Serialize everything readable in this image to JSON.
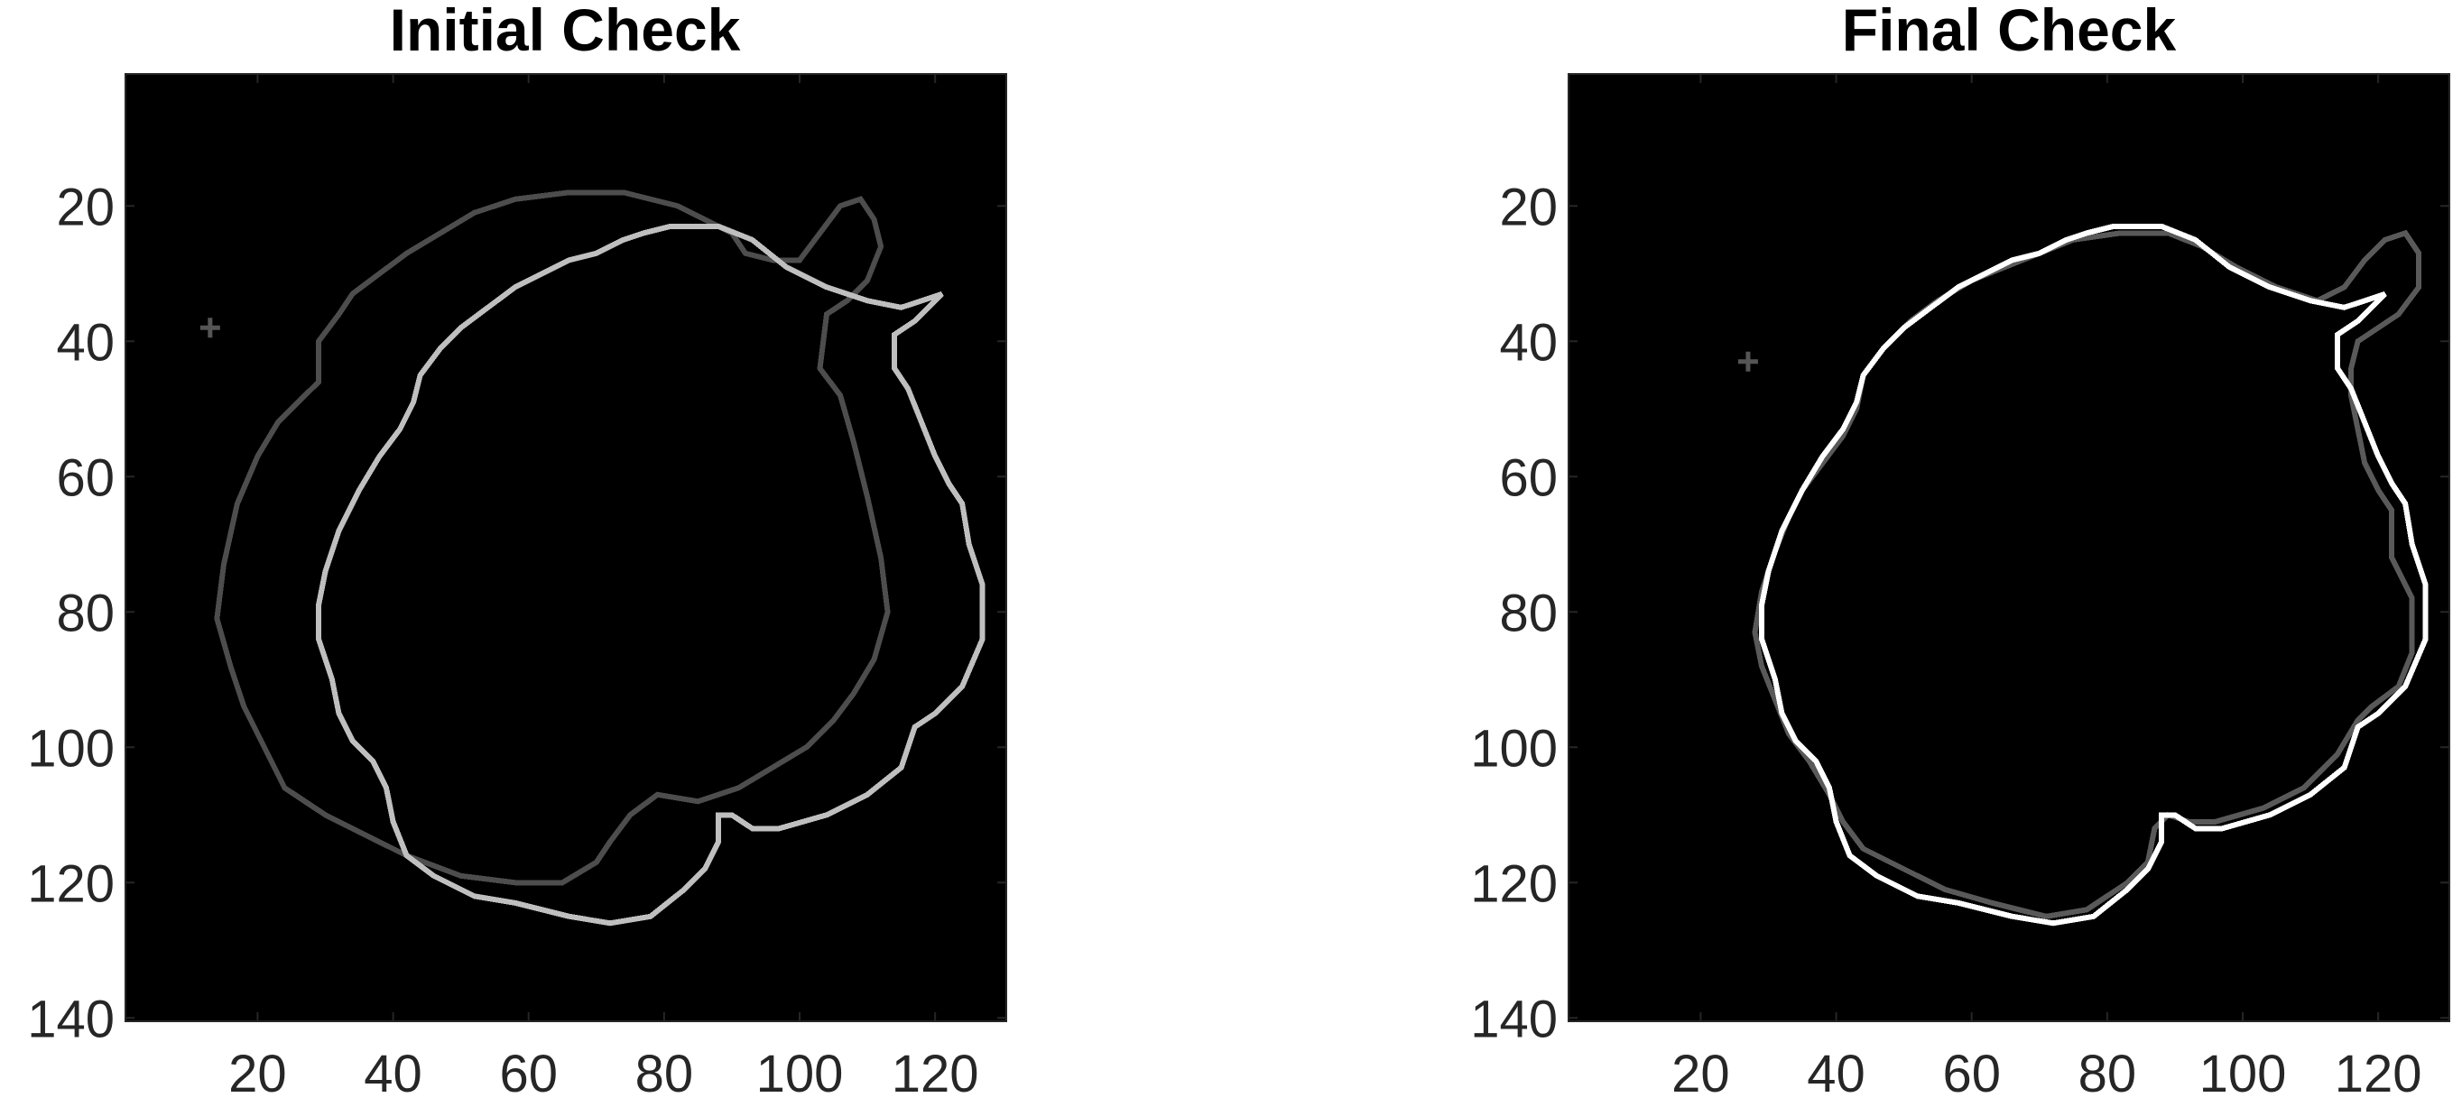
{
  "chart_data": [
    {
      "type": "heatmap",
      "title": "Initial Check",
      "xlabel": "",
      "ylabel": "",
      "xlim": [
        0.5,
        130.5
      ],
      "ylim": [
        0.5,
        140.5
      ],
      "y_direction": "reverse",
      "xticks": [
        20,
        40,
        60,
        80,
        100,
        120
      ],
      "yticks": [
        20,
        40,
        60,
        80,
        100,
        120,
        140
      ],
      "background_color": "#000000",
      "grid": false,
      "marker_point": {
        "x": 13,
        "y": 38,
        "color": "#555555"
      },
      "series": [
        {
          "color": "#4d4d4d",
          "closed": true,
          "points": [
            [
              66,
              18
            ],
            [
              74,
              18
            ],
            [
              82,
              20
            ],
            [
              86,
              22
            ],
            [
              90,
              24
            ],
            [
              92,
              27
            ],
            [
              96,
              28
            ],
            [
              100,
              28
            ],
            [
              103,
              24
            ],
            [
              106,
              20
            ],
            [
              109,
              19
            ],
            [
              111,
              22
            ],
            [
              112,
              26
            ],
            [
              110,
              31
            ],
            [
              107,
              34
            ],
            [
              104,
              36
            ],
            [
              103,
              44
            ],
            [
              106,
              48
            ],
            [
              108,
              55
            ],
            [
              110,
              63
            ],
            [
              112,
              72
            ],
            [
              113,
              80
            ],
            [
              111,
              87
            ],
            [
              108,
              92
            ],
            [
              105,
              96
            ],
            [
              101,
              100
            ],
            [
              96,
              103
            ],
            [
              91,
              106
            ],
            [
              85,
              108
            ],
            [
              79,
              107
            ],
            [
              75,
              110
            ],
            [
              72,
              114
            ],
            [
              70,
              117
            ],
            [
              65,
              120
            ],
            [
              58,
              120
            ],
            [
              50,
              119
            ],
            [
              42,
              116
            ],
            [
              36,
              113
            ],
            [
              30,
              110
            ],
            [
              24,
              106
            ],
            [
              21,
              100
            ],
            [
              18,
              94
            ],
            [
              16,
              88
            ],
            [
              14,
              81
            ],
            [
              15,
              73
            ],
            [
              17,
              64
            ],
            [
              20,
              57
            ],
            [
              23,
              52
            ],
            [
              26,
              49
            ],
            [
              29,
              46
            ],
            [
              29,
              40
            ],
            [
              32,
              36
            ],
            [
              34,
              33
            ],
            [
              38,
              30
            ],
            [
              42,
              27
            ],
            [
              47,
              24
            ],
            [
              52,
              21
            ],
            [
              58,
              19
            ]
          ]
        },
        {
          "color": "#bfbfbf",
          "closed": true,
          "points": [
            [
              81,
              23
            ],
            [
              88,
              23
            ],
            [
              93,
              25
            ],
            [
              98,
              29
            ],
            [
              104,
              32
            ],
            [
              110,
              34
            ],
            [
              115,
              35
            ],
            [
              118,
              34
            ],
            [
              121,
              33
            ],
            [
              117,
              37
            ],
            [
              114,
              39
            ],
            [
              114,
              44
            ],
            [
              116,
              47
            ],
            [
              118,
              52
            ],
            [
              120,
              57
            ],
            [
              122,
              61
            ],
            [
              124,
              64
            ],
            [
              125,
              70
            ],
            [
              127,
              76
            ],
            [
              127,
              84
            ],
            [
              124,
              91
            ],
            [
              120,
              95
            ],
            [
              117,
              97
            ],
            [
              115,
              103
            ],
            [
              110,
              107
            ],
            [
              104,
              110
            ],
            [
              97,
              112
            ],
            [
              93,
              112
            ],
            [
              90,
              110
            ],
            [
              88,
              110
            ],
            [
              88,
              114
            ],
            [
              86,
              118
            ],
            [
              83,
              121
            ],
            [
              78,
              125
            ],
            [
              72,
              126
            ],
            [
              66,
              125
            ],
            [
              58,
              123
            ],
            [
              52,
              122
            ],
            [
              46,
              119
            ],
            [
              42,
              116
            ],
            [
              40,
              111
            ],
            [
              39,
              106
            ],
            [
              37,
              102
            ],
            [
              34,
              99
            ],
            [
              32,
              95
            ],
            [
              31,
              90
            ],
            [
              29,
              84
            ],
            [
              29,
              79
            ],
            [
              30,
              74
            ],
            [
              32,
              68
            ],
            [
              35,
              62
            ],
            [
              38,
              57
            ],
            [
              41,
              53
            ],
            [
              43,
              49
            ],
            [
              44,
              45
            ],
            [
              47,
              41
            ],
            [
              50,
              38
            ],
            [
              54,
              35
            ],
            [
              58,
              32
            ],
            [
              62,
              30
            ],
            [
              66,
              28
            ],
            [
              70,
              27
            ],
            [
              74,
              25
            ],
            [
              77,
              24
            ]
          ]
        }
      ]
    },
    {
      "type": "heatmap",
      "title": "Final Check",
      "xlabel": "",
      "ylabel": "",
      "xlim": [
        0.5,
        130.5
      ],
      "ylim": [
        0.5,
        140.5
      ],
      "y_direction": "reverse",
      "xticks": [
        20,
        40,
        60,
        80,
        100,
        120
      ],
      "yticks": [
        20,
        40,
        60,
        80,
        100,
        120,
        140
      ],
      "background_color": "#000000",
      "grid": false,
      "marker_point": {
        "x": 27,
        "y": 43,
        "color": "#555555"
      },
      "series": [
        {
          "color": "#595959",
          "closed": true,
          "points": [
            [
              82,
              24
            ],
            [
              89,
              24
            ],
            [
              94,
              26
            ],
            [
              99,
              29
            ],
            [
              105,
              32
            ],
            [
              111,
              34
            ],
            [
              115,
              32
            ],
            [
              118,
              28
            ],
            [
              121,
              25
            ],
            [
              124,
              24
            ],
            [
              126,
              27
            ],
            [
              126,
              32
            ],
            [
              123,
              36
            ],
            [
              120,
              38
            ],
            [
              117,
              40
            ],
            [
              116,
              44
            ],
            [
              116,
              48
            ],
            [
              117,
              53
            ],
            [
              118,
              58
            ],
            [
              120,
              62
            ],
            [
              122,
              65
            ],
            [
              122,
              72
            ],
            [
              125,
              78
            ],
            [
              125,
              86
            ],
            [
              123,
              91
            ],
            [
              119,
              94
            ],
            [
              117,
              96
            ],
            [
              114,
              101
            ],
            [
              109,
              106
            ],
            [
              103,
              109
            ],
            [
              96,
              111
            ],
            [
              92,
              111
            ],
            [
              89,
              110
            ],
            [
              87,
              112
            ],
            [
              86,
              117
            ],
            [
              83,
              120
            ],
            [
              77,
              124
            ],
            [
              71,
              125
            ],
            [
              63,
              123
            ],
            [
              56,
              121
            ],
            [
              50,
              118
            ],
            [
              44,
              115
            ],
            [
              41,
              111
            ],
            [
              39,
              107
            ],
            [
              36,
              102
            ],
            [
              33,
              98
            ],
            [
              31,
              93
            ],
            [
              29,
              88
            ],
            [
              28,
              83
            ],
            [
              29,
              77
            ],
            [
              31,
              71
            ],
            [
              33,
              66
            ],
            [
              35,
              62
            ],
            [
              38,
              58
            ],
            [
              41,
              54
            ],
            [
              43,
              50
            ],
            [
              44,
              45
            ],
            [
              47,
              41
            ],
            [
              51,
              37
            ],
            [
              55,
              34
            ],
            [
              60,
              31
            ],
            [
              65,
              29
            ],
            [
              70,
              27
            ],
            [
              75,
              25
            ]
          ]
        },
        {
          "color": "#ffffff",
          "closed": true,
          "points": [
            [
              81,
              23
            ],
            [
              88,
              23
            ],
            [
              93,
              25
            ],
            [
              98,
              29
            ],
            [
              104,
              32
            ],
            [
              110,
              34
            ],
            [
              115,
              35
            ],
            [
              118,
              34
            ],
            [
              121,
              33
            ],
            [
              117,
              37
            ],
            [
              114,
              39
            ],
            [
              114,
              44
            ],
            [
              116,
              47
            ],
            [
              118,
              52
            ],
            [
              120,
              57
            ],
            [
              122,
              61
            ],
            [
              124,
              64
            ],
            [
              125,
              70
            ],
            [
              127,
              76
            ],
            [
              127,
              84
            ],
            [
              124,
              91
            ],
            [
              120,
              95
            ],
            [
              117,
              97
            ],
            [
              115,
              103
            ],
            [
              110,
              107
            ],
            [
              104,
              110
            ],
            [
              97,
              112
            ],
            [
              93,
              112
            ],
            [
              90,
              110
            ],
            [
              88,
              110
            ],
            [
              88,
              114
            ],
            [
              86,
              118
            ],
            [
              83,
              121
            ],
            [
              78,
              125
            ],
            [
              72,
              126
            ],
            [
              66,
              125
            ],
            [
              58,
              123
            ],
            [
              52,
              122
            ],
            [
              46,
              119
            ],
            [
              42,
              116
            ],
            [
              40,
              111
            ],
            [
              39,
              106
            ],
            [
              37,
              102
            ],
            [
              34,
              99
            ],
            [
              32,
              95
            ],
            [
              31,
              90
            ],
            [
              29,
              84
            ],
            [
              29,
              79
            ],
            [
              30,
              74
            ],
            [
              32,
              68
            ],
            [
              35,
              62
            ],
            [
              38,
              57
            ],
            [
              41,
              53
            ],
            [
              43,
              49
            ],
            [
              44,
              45
            ],
            [
              47,
              41
            ],
            [
              50,
              38
            ],
            [
              54,
              35
            ],
            [
              58,
              32
            ],
            [
              62,
              30
            ],
            [
              66,
              28
            ],
            [
              70,
              27
            ],
            [
              74,
              25
            ],
            [
              77,
              24
            ]
          ]
        }
      ]
    }
  ]
}
